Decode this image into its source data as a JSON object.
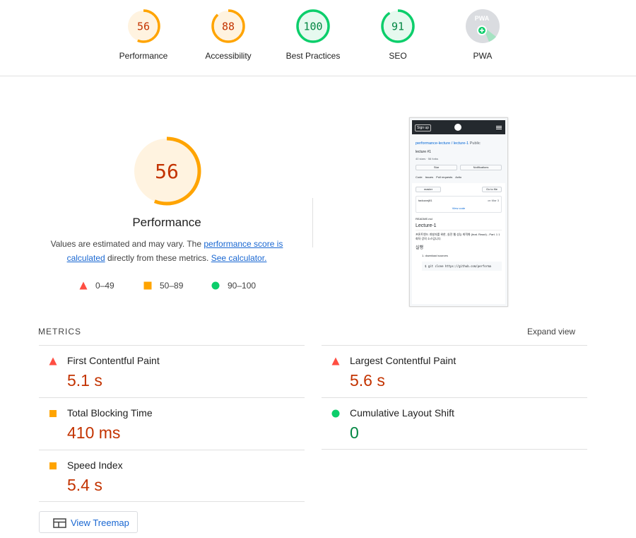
{
  "gauges": [
    {
      "score": "56",
      "label": "Performance",
      "fraction": 0.56,
      "color": "#ffa400",
      "text_color": "#c33300",
      "bg": "#fff3e0"
    },
    {
      "score": "88",
      "label": "Accessibility",
      "fraction": 0.88,
      "color": "#ffa400",
      "text_color": "#c33300",
      "bg": "#fff3e0"
    },
    {
      "score": "100",
      "label": "Best Practices",
      "fraction": 1.0,
      "color": "#0cce6b",
      "text_color": "#018642",
      "bg": "#e6f9ef"
    },
    {
      "score": "91",
      "label": "SEO",
      "fraction": 0.91,
      "color": "#0cce6b",
      "text_color": "#018642",
      "bg": "#e6f9ef"
    },
    {
      "score": "PWA",
      "label": "PWA"
    }
  ],
  "performance": {
    "score": "56",
    "fraction": 0.56,
    "title": "Performance",
    "desc_prefix": "Values are estimated and may vary. The ",
    "desc_link1": "performance score is calculated",
    "desc_middle": " directly from these metrics. ",
    "desc_link2": "See calculator."
  },
  "legend": [
    {
      "range": "0–49",
      "shape": "triangle",
      "color": "#ff4e42"
    },
    {
      "range": "50–89",
      "shape": "square",
      "color": "#ffa400"
    },
    {
      "range": "90–100",
      "shape": "circle",
      "color": "#0cce6b"
    }
  ],
  "screenshot": {
    "signup": "Sign up",
    "repo": "performance-lecture / lecture-1",
    "public": "Public",
    "subtitle": "lecture #1",
    "stars": "40 stars",
    "forks": "56 forks",
    "star_btn": "Star",
    "notif_btn": "Notifications",
    "tabs": [
      "Code",
      "Issues",
      "Pull requests",
      "Actio"
    ],
    "branch": "master",
    "goto": "Go to file",
    "commit_user": "taduuxnj81",
    "commit_date": "on Mar 3",
    "view_code": "View code",
    "readme": "README.md",
    "h1": "Lecture-1",
    "p1": "프론트엔드 개발자를 위한, 실전 웹 성능 최적화 (feat. React) - Part. 1 1회차 강의 소스입니다.",
    "h2": "실행",
    "li": "1. download sources",
    "code": "$ git clone https://github.com/performa"
  },
  "metrics": {
    "header": "METRICS",
    "expand": "Expand view",
    "items": [
      {
        "name": "First Contentful Paint",
        "value": "5.1 s",
        "status": "fail"
      },
      {
        "name": "Largest Contentful Paint",
        "value": "5.6 s",
        "status": "fail"
      },
      {
        "name": "Total Blocking Time",
        "value": "410 ms",
        "status": "average"
      },
      {
        "name": "Cumulative Layout Shift",
        "value": "0",
        "status": "pass"
      },
      {
        "name": "Speed Index",
        "value": "5.4 s",
        "status": "average"
      }
    ]
  },
  "treemap": {
    "label": "View Treemap"
  },
  "colors": {
    "fail": "#ff4e42",
    "average": "#ffa400",
    "pass": "#0cce6b",
    "link": "#1967d2"
  }
}
